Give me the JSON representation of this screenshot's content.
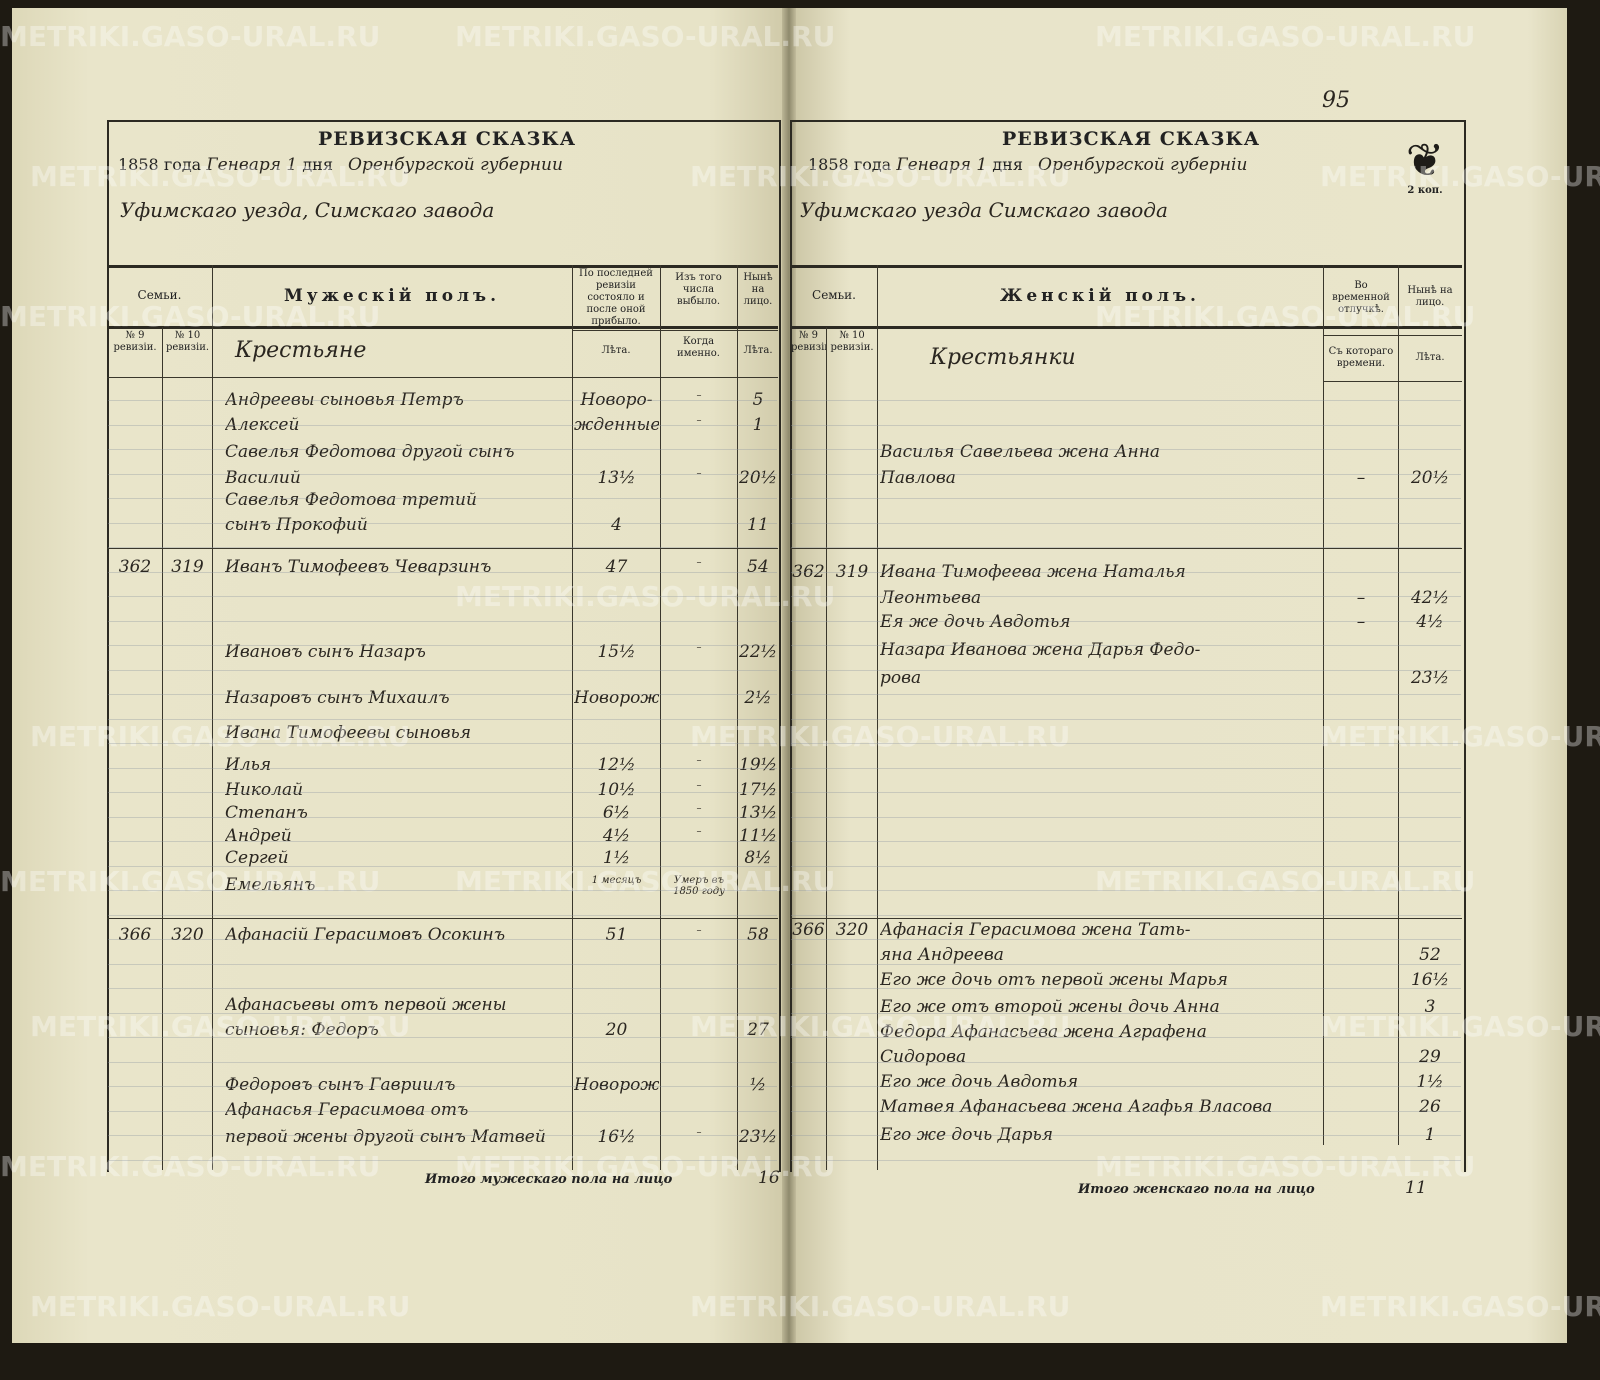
{
  "watermark": "METRIKI.GASO-URAL.RU",
  "page_number": "95",
  "stamp": {
    "label": "2 коп.",
    "icon": "double-headed-eagle-icon"
  },
  "left": {
    "title": "РЕВИЗСКАЯ СКАЗКА",
    "date_line": {
      "year": "1858",
      "year_word": "года",
      "month": "Генваря 1",
      "day_word": "дня",
      "gubernia": "Оренбургской губернии"
    },
    "place_line": "Уфимскаго уезда, Симскаго завода",
    "headers": {
      "families": "Семьи.",
      "section": "Мужескій полъ.",
      "prev_revision": "По последней ревизіи состояло и после оной прибыло.",
      "departed": "Изъ того числа выбыло.",
      "present": "Нынѣ на лицо.",
      "no9": "№ 9 ревизіи.",
      "no10": "№ 10 ревизіи.",
      "category": "Крестьяне",
      "years": "Лѣта.",
      "when": "Когда именно.",
      "years2": "Лѣта."
    },
    "rows": [
      {
        "n9": "",
        "n10": "",
        "name": "Андреевы сыновья Петръ",
        "prev": "Новоро-",
        "when": "–",
        "now": "5"
      },
      {
        "n9": "",
        "n10": "",
        "name": "Алексей",
        "prev": "жденные",
        "when": "–",
        "now": "1"
      },
      {
        "n9": "",
        "n10": "",
        "name": "Савелья Федотова другой сынъ",
        "prev": "",
        "when": "",
        "now": ""
      },
      {
        "n9": "",
        "n10": "",
        "name": "Василий",
        "prev": "13½",
        "when": "–",
        "now": "20½"
      },
      {
        "n9": "",
        "n10": "",
        "name": "Савелья Федотова третий",
        "prev": "",
        "when": "",
        "now": ""
      },
      {
        "n9": "",
        "n10": "",
        "name": "сынъ Прокофий",
        "prev": "4",
        "when": "",
        "now": "11"
      },
      {
        "n9": "362",
        "n10": "319",
        "name": "Иванъ Тимофеевъ Чеварзинъ",
        "prev": "47",
        "when": "–",
        "now": "54"
      },
      {
        "n9": "",
        "n10": "",
        "name": "Ивановъ сынъ Назаръ",
        "prev": "15½",
        "when": "–",
        "now": "22½"
      },
      {
        "n9": "",
        "n10": "",
        "name": "Назаровъ сынъ Михаилъ",
        "prev": "Новорожд.",
        "when": "",
        "now": "2½"
      },
      {
        "n9": "",
        "n10": "",
        "name": "Ивана Тимофеевы сыновья",
        "prev": "",
        "when": "",
        "now": ""
      },
      {
        "n9": "",
        "n10": "",
        "name": "Илья",
        "prev": "12½",
        "when": "–",
        "now": "19½"
      },
      {
        "n9": "",
        "n10": "",
        "name": "Николай",
        "prev": "10½",
        "when": "–",
        "now": "17½"
      },
      {
        "n9": "",
        "n10": "",
        "name": "Степанъ",
        "prev": "6½",
        "when": "–",
        "now": "13½"
      },
      {
        "n9": "",
        "n10": "",
        "name": "Андрей",
        "prev": "4½",
        "when": "–",
        "now": "11½"
      },
      {
        "n9": "",
        "n10": "",
        "name": "Сергей",
        "prev": "1½",
        "when": "",
        "now": "8½"
      },
      {
        "n9": "",
        "n10": "",
        "name": "Емельянъ",
        "prev": "1 месяцъ",
        "when": "Умеръ въ 1850 году",
        "now": ""
      },
      {
        "n9": "366",
        "n10": "320",
        "name": "Афанасiй Герасимовъ Осокинъ",
        "prev": "51",
        "when": "–",
        "now": "58"
      },
      {
        "n9": "",
        "n10": "",
        "name": "Афанасьевы отъ первой жены",
        "prev": "",
        "when": "",
        "now": ""
      },
      {
        "n9": "",
        "n10": "",
        "name": "сыновья: Федоръ",
        "prev": "20",
        "when": "",
        "now": "27"
      },
      {
        "n9": "",
        "n10": "",
        "name": "Федоровъ сынъ Гавриилъ",
        "prev": "Новорожд.",
        "when": "",
        "now": "½"
      },
      {
        "n9": "",
        "n10": "",
        "name": "Афанасья Герасимова отъ",
        "prev": "",
        "when": "",
        "now": ""
      },
      {
        "n9": "",
        "n10": "",
        "name": "первой жены другой сынъ Матвей",
        "prev": "16½",
        "when": "–",
        "now": "23½"
      }
    ],
    "total_label": "Итого мужескаго пола на лицо",
    "total": "16"
  },
  "right": {
    "title": "РЕВИЗСКАЯ СКАЗКА",
    "date_line": {
      "year": "1858",
      "year_word": "года",
      "month": "Генваря 1",
      "day_word": "дня",
      "gubernia": "Оренбургской губерніи"
    },
    "place_line": "Уфимскаго уезда Симскаго завода",
    "headers": {
      "families": "Семьи.",
      "section": "Женскій полъ.",
      "away": "Во временной отлучкѣ.",
      "present": "Нынѣ на лицо.",
      "no9": "№ 9 ревизіи.",
      "no10": "№ 10 ревизіи.",
      "category": "Крестьянки",
      "since": "Съ котораго времени.",
      "years": "Лѣта."
    },
    "rows": [
      {
        "n9": "",
        "n10": "",
        "name": "Василья Савельева жена Анна",
        "away": "",
        "now": ""
      },
      {
        "n9": "",
        "n10": "",
        "name": "Павлова",
        "away": "–",
        "now": "20½"
      },
      {
        "n9": "362",
        "n10": "319",
        "name": "Ивана Тимофеева жена Наталья",
        "away": "",
        "now": ""
      },
      {
        "n9": "",
        "n10": "",
        "name": "Леонтьева",
        "away": "–",
        "now": "42½"
      },
      {
        "n9": "",
        "n10": "",
        "name": "Ея же дочь Авдотья",
        "away": "–",
        "now": "4½"
      },
      {
        "n9": "",
        "n10": "",
        "name": "Назара Иванова жена Дарья Федо-",
        "away": "",
        "now": ""
      },
      {
        "n9": "",
        "n10": "",
        "name": "рова",
        "away": "",
        "now": "23½"
      },
      {
        "n9": "366",
        "n10": "320",
        "name": "Афанасiя Герасимова жена Тать-",
        "away": "",
        "now": ""
      },
      {
        "n9": "",
        "n10": "",
        "name": "яна Андреева",
        "away": "",
        "now": "52"
      },
      {
        "n9": "",
        "n10": "",
        "name": "Его же дочь отъ первой жены Марья",
        "away": "",
        "now": "16½"
      },
      {
        "n9": "",
        "n10": "",
        "name": "Его же отъ второй жены дочь Анна",
        "away": "",
        "now": "3"
      },
      {
        "n9": "",
        "n10": "",
        "name": "Федора Афанасьева жена Аграфена",
        "away": "",
        "now": ""
      },
      {
        "n9": "",
        "n10": "",
        "name": "Сидорова",
        "away": "",
        "now": "29"
      },
      {
        "n9": "",
        "n10": "",
        "name": "Его же дочь Авдотья",
        "away": "",
        "now": "1½"
      },
      {
        "n9": "",
        "n10": "",
        "name": "Матвея Афанасьева жена Агафья Власова",
        "away": "",
        "now": "26"
      },
      {
        "n9": "",
        "n10": "",
        "name": "Его же дочь Дарья",
        "away": "",
        "now": "1"
      }
    ],
    "total_label": "Итого женскаго пола на лицо",
    "total": "11"
  }
}
